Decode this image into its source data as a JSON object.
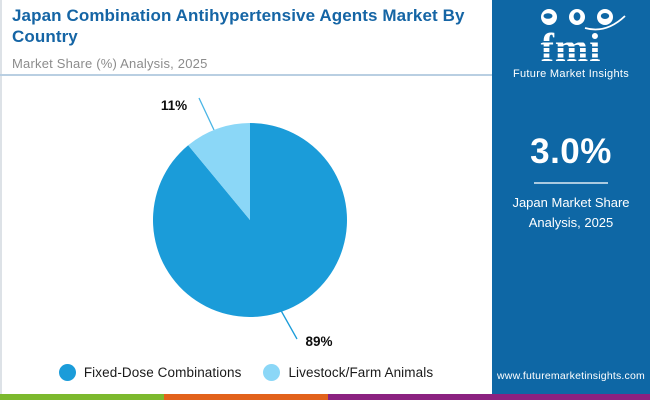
{
  "header": {
    "title": "Japan Combination Antihypertensive Agents Market By Country",
    "subtitle": "Market Share (%) Analysis, 2025",
    "title_color": "#1565a5"
  },
  "chart_data": {
    "type": "pie",
    "title": "Japan Combination Antihypertensive Agents Market By Country",
    "subtitle": "Market Share (%) Analysis, 2025",
    "unit": "percent",
    "start_angle_deg": 0,
    "direction": "clockwise",
    "slices": [
      {
        "label": "Fixed-Dose Combinations",
        "value": 89,
        "percent_label": "89%",
        "color": "#1b9cd9"
      },
      {
        "label": "Livestock/Farm Animals",
        "value": 11,
        "percent_label": "11%",
        "color": "#8bd7f7"
      }
    ],
    "legend_position": "bottom"
  },
  "panel": {
    "background": "#0e67a5",
    "logo": {
      "text": "fmi",
      "subtext": "Future Market Insights"
    },
    "stat_value": "3.0%",
    "stat_label": "Japan Market Share Analysis, 2025",
    "website": "www.futuremarketinsights.com"
  },
  "footer_strip": {
    "colors": [
      "#7cb92e",
      "#e2621b",
      "#8b2280"
    ]
  }
}
